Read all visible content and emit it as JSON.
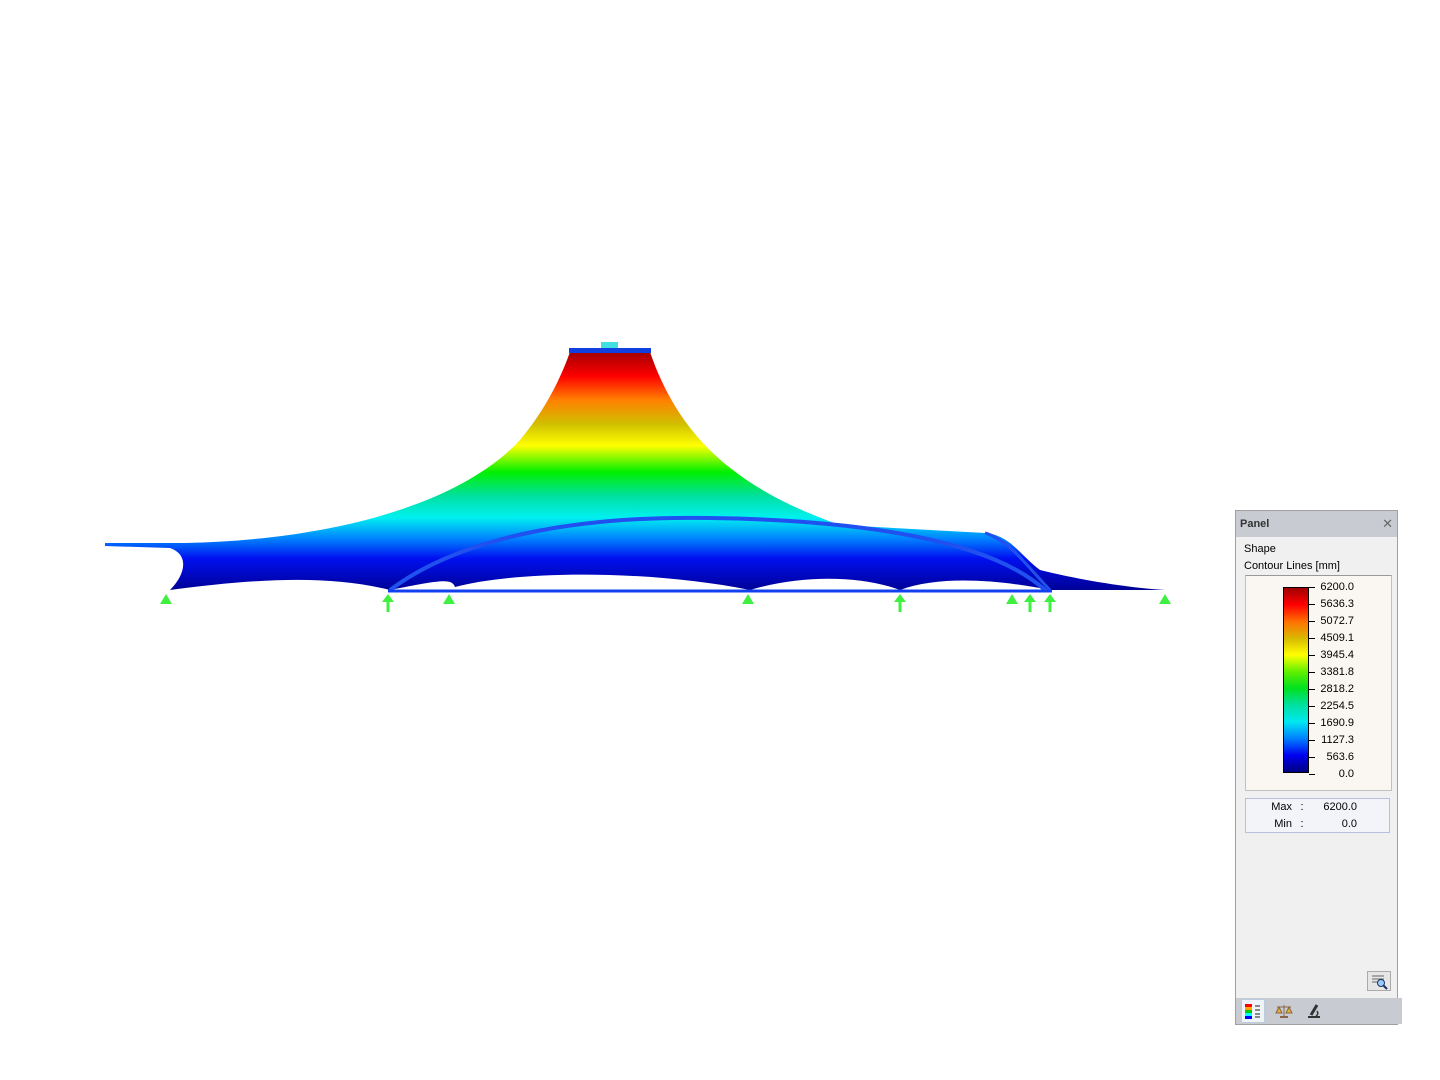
{
  "panel": {
    "title": "Panel",
    "close_icon": "close-icon",
    "section": "Shape",
    "legend_title": "Contour Lines [mm]",
    "legend_values": [
      "6200.0",
      "5636.3",
      "5072.7",
      "4509.1",
      "3945.4",
      "3381.8",
      "2818.2",
      "2254.5",
      "1690.9",
      "1127.3",
      "563.6",
      "0.0"
    ],
    "legend_colors": [
      "#a00000",
      "#ff0000",
      "#ff7000",
      "#d8b800",
      "#ffff00",
      "#60f000",
      "#00e020",
      "#00e0a0",
      "#00e8f0",
      "#0080ff",
      "#0000f0",
      "#000080"
    ],
    "max_label": "Max",
    "max_value": "6200.0",
    "min_label": "Min",
    "min_value": "0.0",
    "separator": ":",
    "tabs": [
      "color-scale-icon",
      "balance-icon",
      "microscope-icon"
    ]
  },
  "colors": {
    "support": "#40f040",
    "member": "#1040f0"
  }
}
